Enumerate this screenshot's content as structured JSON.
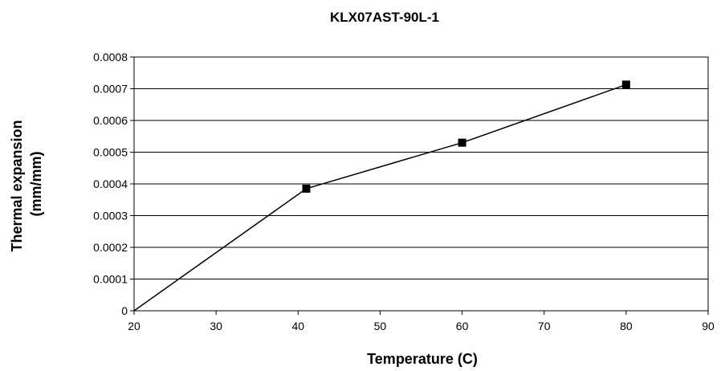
{
  "chart_data": {
    "type": "line",
    "title": "KLX07AST-90L-1",
    "xlabel": "Temperature (C)",
    "ylabel_lines": [
      "Thermal expansion",
      "(mm/mm)"
    ],
    "xlim": [
      20,
      90
    ],
    "ylim": [
      0,
      0.0008
    ],
    "x_ticks": [
      "20",
      "30",
      "40",
      "50",
      "60",
      "70",
      "80",
      "90"
    ],
    "y_ticks": [
      "0",
      "0.0001",
      "0.0002",
      "0.0003",
      "0.0004",
      "0.0005",
      "0.0006",
      "0.0007",
      "0.0008"
    ],
    "grid": "horizontal",
    "series": [
      {
        "x": [
          20,
          41,
          60,
          80
        ],
        "y": [
          0,
          0.000385,
          0.00053,
          0.000713
        ],
        "markers": [
          false,
          true,
          true,
          true
        ],
        "marker": "square",
        "color": "#000000"
      }
    ]
  }
}
